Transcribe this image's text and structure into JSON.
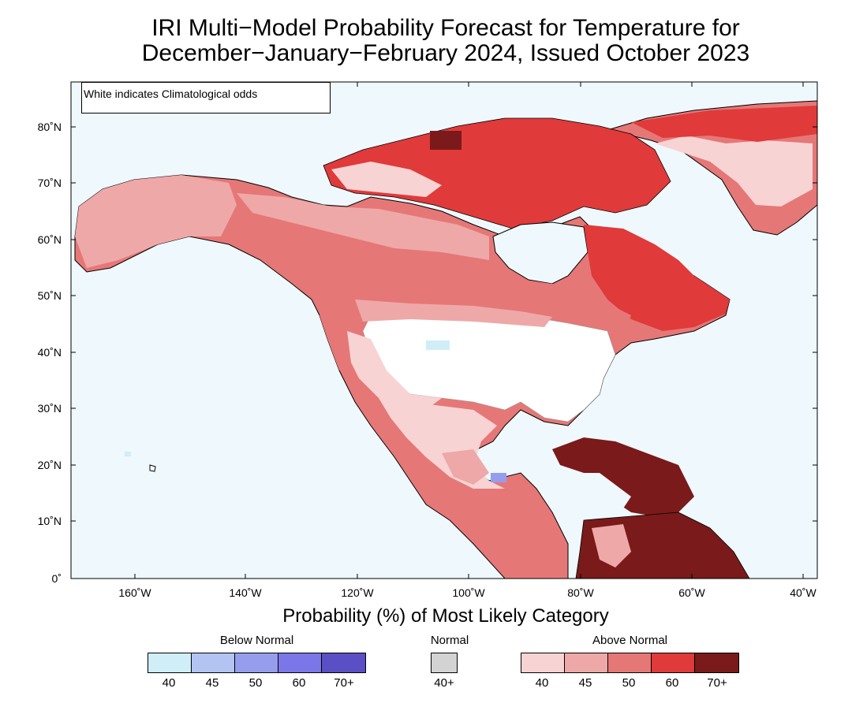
{
  "title": {
    "line1": "IRI Multi−Model Probability Forecast for Temperature for",
    "line2": "December−January−February 2024, Issued October 2023"
  },
  "note": "White indicates Climatological odds",
  "axes": {
    "lat_labels": [
      "80˚N",
      "70˚N",
      "60˚N",
      "50˚N",
      "40˚N",
      "30˚N",
      "20˚N",
      "10˚N",
      "0˚"
    ],
    "lon_labels": [
      "160˚W",
      "140˚W",
      "120˚W",
      "100˚W",
      "80˚W",
      "60˚W",
      "40˚W"
    ]
  },
  "legend": {
    "title": "Probability (%) of Most Likely Category",
    "below_label": "Below Normal",
    "normal_label": "Normal",
    "above_label": "Above Normal",
    "below_ticks": [
      "40",
      "45",
      "50",
      "60",
      "70+"
    ],
    "normal_ticks": [
      "40+"
    ],
    "above_ticks": [
      "40",
      "45",
      "50",
      "60",
      "70+"
    ],
    "colors": {
      "ocean": "#eef8fd",
      "below": [
        "#cfeef8",
        "#b3c3f2",
        "#979ded",
        "#7b77e8",
        "#5a4fc4"
      ],
      "normal": "#d3d3d3",
      "above": [
        "#f8d3d3",
        "#eea8a8",
        "#e67777",
        "#e03a3a",
        "#7a1a1a"
      ]
    }
  }
}
